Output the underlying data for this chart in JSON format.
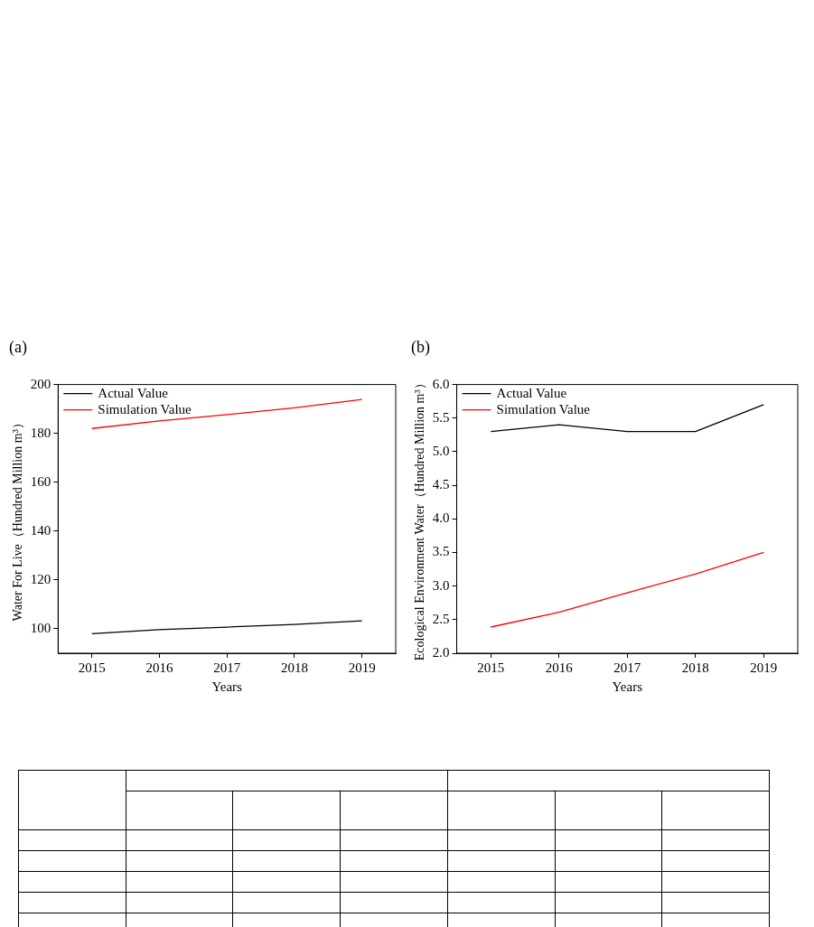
{
  "chart_data": [
    {
      "type": "line",
      "title": "(a)",
      "xlabel": "Years",
      "ylabel": "Water For Live（Hundred Million m³）",
      "x": [
        2015,
        2016,
        2017,
        2018,
        2019
      ],
      "xlim": [
        2014.5,
        2019.5
      ],
      "xticks": [
        2015,
        2016,
        2017,
        2018,
        2019
      ],
      "ylim": [
        90,
        200
      ],
      "yticks": [
        100,
        120,
        140,
        160,
        180,
        200
      ],
      "grid": false,
      "legend": "top left",
      "series": [
        {
          "name": "Actual Value",
          "color": "#000000",
          "values": [
            98,
            99.7,
            100.7,
            101.8,
            103.3
          ]
        },
        {
          "name": "Simulation Value",
          "color": "#ff0000",
          "values": [
            182,
            185.1,
            187.7,
            190.5,
            193.9
          ]
        }
      ]
    },
    {
      "type": "line",
      "title": "(b)",
      "xlabel": "Years",
      "ylabel": "Ecological Environment Water（Hundred Million m³）",
      "x": [
        2015,
        2016,
        2017,
        2018,
        2019
      ],
      "xlim": [
        2014.5,
        2019.5
      ],
      "xticks": [
        2015,
        2016,
        2017,
        2018,
        2019
      ],
      "ylim": [
        2,
        6
      ],
      "yticks": [
        {
          "value": 2,
          "label": "2.0"
        },
        {
          "value": 2.5,
          "label": "2.5"
        },
        {
          "value": 3,
          "label": "3.0"
        },
        {
          "value": 3.5,
          "label": "3.5"
        },
        {
          "value": 4,
          "label": "4.0"
        },
        {
          "value": 4.5,
          "label": "4.5"
        },
        {
          "value": 5,
          "label": "5.0"
        },
        {
          "value": 5.5,
          "label": "5.5"
        },
        {
          "value": 6,
          "label": "6.0"
        }
      ],
      "grid": false,
      "legend": "top left",
      "series": [
        {
          "name": "Actual Value",
          "color": "#000000",
          "values": [
            5.3,
            5.4,
            5.3,
            5.3,
            5.7
          ]
        },
        {
          "name": "Simulation Value",
          "color": "#ff0000",
          "values": [
            2.39,
            2.61,
            2.9,
            3.18,
            3.5
          ]
        }
      ]
    }
  ]
}
